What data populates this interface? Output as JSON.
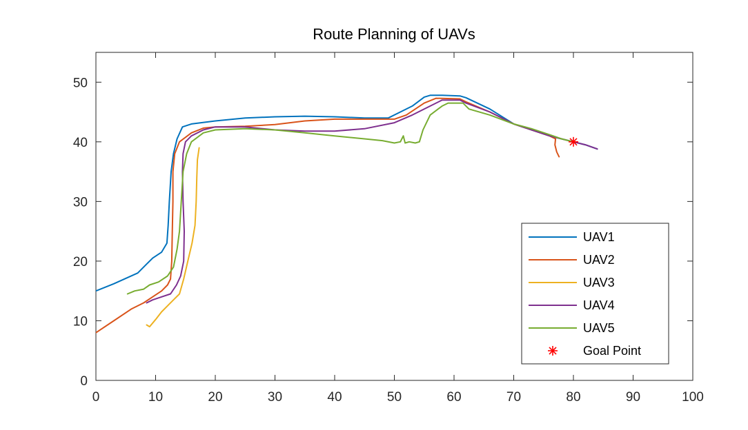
{
  "chart_data": {
    "type": "line",
    "title": "Route Planning of UAVs",
    "xlabel": "",
    "ylabel": "",
    "xlim": [
      0,
      100
    ],
    "ylim": [
      0,
      55
    ],
    "xticks": [
      0,
      10,
      20,
      30,
      40,
      50,
      60,
      70,
      80,
      90,
      100
    ],
    "yticks": [
      0,
      10,
      20,
      30,
      40,
      50
    ],
    "grid": false,
    "legend_position": "bottom-right",
    "series": [
      {
        "name": "UAV1",
        "color": "#0072BD",
        "points": [
          [
            0,
            15
          ],
          [
            3,
            16.2
          ],
          [
            7,
            18
          ],
          [
            8.5,
            19.5
          ],
          [
            9.5,
            20.5
          ],
          [
            11,
            21.5
          ],
          [
            11.9,
            23
          ],
          [
            12.1,
            26
          ],
          [
            12.3,
            30
          ],
          [
            12.6,
            35
          ],
          [
            13,
            38
          ],
          [
            13.6,
            40.5
          ],
          [
            14.5,
            42.5
          ],
          [
            16,
            43
          ],
          [
            20,
            43.5
          ],
          [
            25,
            44
          ],
          [
            30,
            44.2
          ],
          [
            35,
            44.3
          ],
          [
            40,
            44.2
          ],
          [
            45,
            44
          ],
          [
            49,
            44
          ],
          [
            51,
            45
          ],
          [
            53,
            46
          ],
          [
            55,
            47.5
          ],
          [
            56,
            47.8
          ],
          [
            58,
            47.8
          ],
          [
            61,
            47.7
          ],
          [
            62,
            47.4
          ],
          [
            66,
            45.5
          ],
          [
            70,
            43
          ],
          [
            73,
            42
          ],
          [
            76,
            41
          ],
          [
            78,
            40.5
          ],
          [
            80,
            40
          ],
          [
            82,
            39.5
          ],
          [
            84,
            38.8
          ]
        ]
      },
      {
        "name": "UAV2",
        "color": "#D95319",
        "points": [
          [
            0,
            8
          ],
          [
            3,
            10
          ],
          [
            6,
            12
          ],
          [
            8,
            13
          ],
          [
            9.5,
            14
          ],
          [
            11,
            15
          ],
          [
            12,
            16
          ],
          [
            12.5,
            17
          ],
          [
            12.7,
            20
          ],
          [
            12.8,
            25
          ],
          [
            12.9,
            30
          ],
          [
            12.9,
            35
          ],
          [
            13.2,
            38
          ],
          [
            14,
            40
          ],
          [
            16,
            41.5
          ],
          [
            18,
            42.3
          ],
          [
            20,
            42.5
          ],
          [
            25,
            42.6
          ],
          [
            30,
            42.9
          ],
          [
            35,
            43.5
          ],
          [
            40,
            43.8
          ],
          [
            45,
            43.8
          ],
          [
            50,
            43.8
          ],
          [
            52,
            44.5
          ],
          [
            55,
            46.5
          ],
          [
            57,
            47.3
          ],
          [
            61,
            47.2
          ],
          [
            62,
            46.7
          ],
          [
            66,
            45
          ],
          [
            70,
            43
          ],
          [
            73,
            42
          ],
          [
            76,
            41
          ],
          [
            77,
            40.5
          ],
          [
            76.9,
            39.5
          ],
          [
            77.2,
            38.3
          ],
          [
            77.6,
            37.5
          ]
        ]
      },
      {
        "name": "UAV3",
        "color": "#EDB120",
        "points": [
          [
            8.5,
            9.3
          ],
          [
            9,
            9
          ],
          [
            10,
            10.2
          ],
          [
            11,
            11.5
          ],
          [
            12,
            12.5
          ],
          [
            13,
            13.5
          ],
          [
            14,
            14.5
          ],
          [
            14.7,
            17
          ],
          [
            15.4,
            20
          ],
          [
            16.1,
            23
          ],
          [
            16.6,
            26
          ],
          [
            16.8,
            30
          ],
          [
            16.9,
            34
          ],
          [
            17,
            37
          ],
          [
            17.3,
            39
          ]
        ]
      },
      {
        "name": "UAV4",
        "color": "#7E2F8E",
        "points": [
          [
            8.5,
            13
          ],
          [
            9.5,
            13.5
          ],
          [
            11,
            14
          ],
          [
            12.5,
            14.5
          ],
          [
            13.5,
            16
          ],
          [
            14.2,
            17.5
          ],
          [
            14.7,
            20
          ],
          [
            14.8,
            25
          ],
          [
            14.6,
            30
          ],
          [
            14.5,
            35
          ],
          [
            14.6,
            38
          ],
          [
            15,
            40
          ],
          [
            16,
            41
          ],
          [
            18,
            42
          ],
          [
            20,
            42.5
          ],
          [
            25,
            42.5
          ],
          [
            30,
            42
          ],
          [
            35,
            41.8
          ],
          [
            40,
            41.8
          ],
          [
            45,
            42.2
          ],
          [
            50,
            43.2
          ],
          [
            53,
            44.5
          ],
          [
            56,
            46
          ],
          [
            58,
            47
          ],
          [
            61,
            47
          ],
          [
            62,
            46.5
          ],
          [
            66,
            45
          ],
          [
            70,
            43
          ],
          [
            73,
            42
          ],
          [
            76,
            41
          ],
          [
            78,
            40.5
          ],
          [
            80,
            40
          ],
          [
            82,
            39.5
          ],
          [
            84,
            38.8
          ]
        ]
      },
      {
        "name": "UAV5",
        "color": "#77AC30",
        "points": [
          [
            5.3,
            14.5
          ],
          [
            6.5,
            15
          ],
          [
            8,
            15.3
          ],
          [
            9,
            16
          ],
          [
            10.5,
            16.5
          ],
          [
            12,
            17.5
          ],
          [
            13,
            19
          ],
          [
            13.6,
            22
          ],
          [
            14,
            25
          ],
          [
            14.3,
            30
          ],
          [
            14.6,
            35
          ],
          [
            15.2,
            38
          ],
          [
            16,
            40
          ],
          [
            18,
            41.5
          ],
          [
            20,
            42
          ],
          [
            25,
            42.2
          ],
          [
            30,
            42
          ],
          [
            35,
            41.5
          ],
          [
            40,
            41
          ],
          [
            45,
            40.5
          ],
          [
            48,
            40.2
          ],
          [
            50,
            39.8
          ],
          [
            51,
            40
          ],
          [
            51.5,
            41
          ],
          [
            51.8,
            39.8
          ],
          [
            52.5,
            40
          ],
          [
            53.5,
            39.8
          ],
          [
            54.2,
            40
          ],
          [
            54.8,
            42
          ],
          [
            56,
            44.5
          ],
          [
            58,
            46
          ],
          [
            59,
            46.5
          ],
          [
            61.5,
            46.5
          ],
          [
            62.5,
            45.5
          ],
          [
            66,
            44.5
          ],
          [
            70,
            43
          ],
          [
            73,
            42.2
          ],
          [
            76,
            41.2
          ],
          [
            78,
            40.5
          ],
          [
            80,
            40
          ]
        ]
      },
      {
        "name": "Goal Point",
        "color": "#FF0000",
        "marker": "asterisk",
        "points": [
          [
            80,
            40
          ]
        ]
      }
    ]
  }
}
